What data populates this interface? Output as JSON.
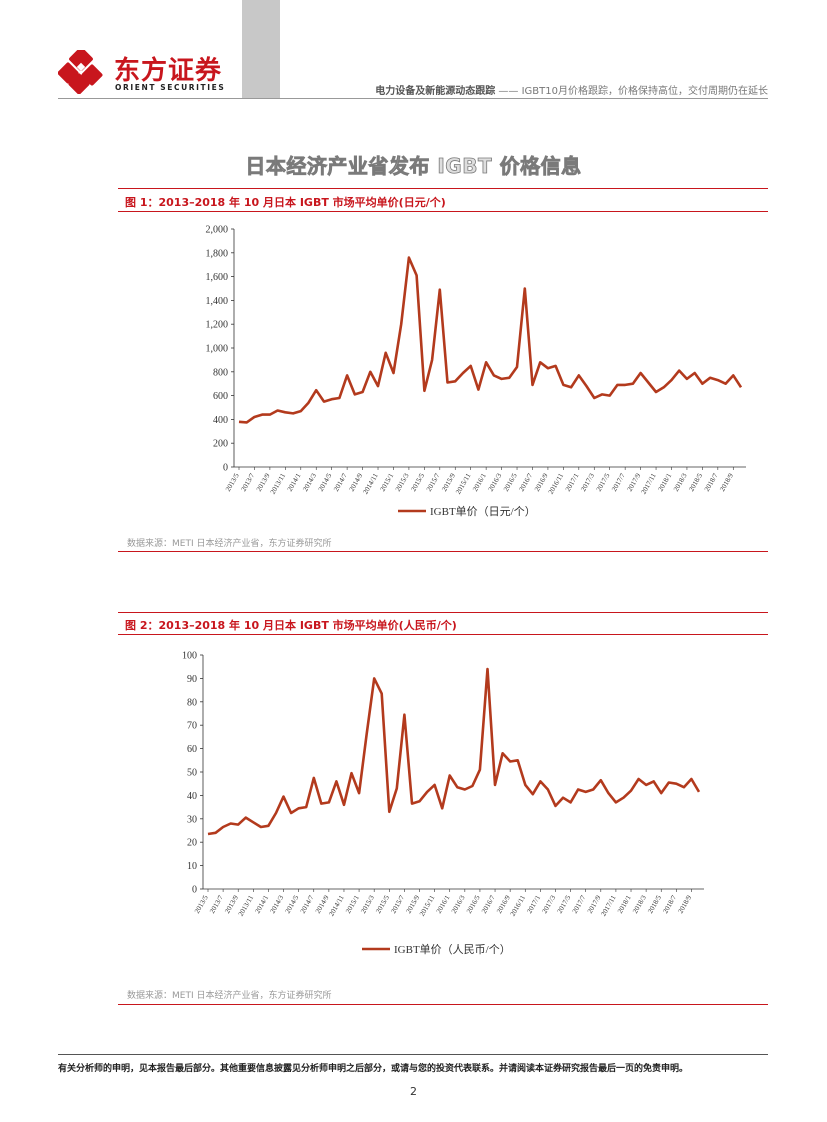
{
  "header": {
    "logo_cn": "东方证券",
    "logo_en": "ORIENT SECURITIES",
    "report_series": "电力设备及新能源动态跟踪",
    "separator": "——",
    "report_title": "IGBT10月价格跟踪，价格保持高位，交付周期仍在延长"
  },
  "section_title": "日本经济产业省发布 IGBT 价格信息",
  "figures": [
    {
      "title": "图 1：2013–2018 年 10 月日本 IGBT 市场平均单价(日元/个)",
      "source": "数据来源：METI 日本经济产业省，东方证券研究所"
    },
    {
      "title": "图 2：2013–2018 年 10 月日本 IGBT 市场平均单价(人民币/个)",
      "source": "数据来源：METI 日本经济产业省，东方证券研究所"
    }
  ],
  "chart_data": [
    {
      "type": "line",
      "title": "2013–2018 年 10 月日本 IGBT 市场平均单价(日元/个)",
      "legend": "IGBT单价（日元/个）",
      "line_color": "#b33a1d",
      "ylim": [
        0,
        2000
      ],
      "yticks": [
        0,
        200,
        400,
        600,
        800,
        "1,000",
        "1,200",
        "1,400",
        "1,600",
        "1,800",
        "2,000"
      ],
      "ytick_values": [
        0,
        200,
        400,
        600,
        800,
        1000,
        1200,
        1400,
        1600,
        1800,
        2000
      ],
      "x_tick_labels": [
        "2013/5",
        "2013/7",
        "2013/9",
        "2013/11",
        "2014/1",
        "2014/3",
        "2014/5",
        "2014/7",
        "2014/9",
        "2014/11",
        "2015/1",
        "2015/3",
        "2015/5",
        "2015/7",
        "2015/9",
        "2015/11",
        "2016/1",
        "2016/3",
        "2016/5",
        "2016/7",
        "2016/9",
        "2016/11",
        "2017/1",
        "2017/3",
        "2017/5",
        "2017/7",
        "2017/9",
        "2017/11",
        "2018/1",
        "2018/3",
        "2018/5",
        "2018/7",
        "2018/9"
      ],
      "series": [
        {
          "name": "IGBT单价（日元/个）",
          "values": [
            380,
            375,
            420,
            440,
            440,
            475,
            460,
            450,
            470,
            540,
            645,
            550,
            570,
            580,
            770,
            610,
            630,
            800,
            680,
            960,
            790,
            1200,
            1760,
            1610,
            640,
            900,
            1490,
            710,
            720,
            790,
            850,
            650,
            880,
            770,
            740,
            750,
            840,
            1500,
            690,
            880,
            830,
            850,
            690,
            670,
            770,
            680,
            580,
            610,
            600,
            690,
            690,
            700,
            790,
            710,
            630,
            670,
            730,
            810,
            740,
            790,
            700,
            750,
            730,
            700,
            770,
            670
          ]
        }
      ]
    },
    {
      "type": "line",
      "title": "2013–2018 年 10 月日本 IGBT 市场平均单价(人民币/个)",
      "legend": "IGBT单价（人民币/个）",
      "line_color": "#b33a1d",
      "ylim": [
        0,
        100
      ],
      "yticks": [
        0,
        10,
        20,
        30,
        40,
        50,
        60,
        70,
        80,
        90,
        100
      ],
      "ytick_values": [
        0,
        10,
        20,
        30,
        40,
        50,
        60,
        70,
        80,
        90,
        100
      ],
      "x_tick_labels": [
        "2013/5",
        "2013/7",
        "2013/9",
        "2013/11",
        "2014/1",
        "2014/3",
        "2014/5",
        "2014/7",
        "2014/9",
        "2014/11",
        "2015/1",
        "2015/3",
        "2015/5",
        "2015/7",
        "2015/9",
        "2015/11",
        "2016/1",
        "2016/3",
        "2016/5",
        "2016/7",
        "2016/9",
        "2016/11",
        "2017/1",
        "2017/3",
        "2017/5",
        "2017/7",
        "2017/9",
        "2017/11",
        "2018/1",
        "2018/3",
        "2018/5",
        "2018/7",
        "2018/9"
      ],
      "series": [
        {
          "name": "IGBT单价（人民币/个）",
          "values": [
            23.5,
            24,
            26.5,
            28,
            27.5,
            30.5,
            28.5,
            26.5,
            27,
            32.5,
            39.5,
            32.5,
            34.5,
            35,
            47.5,
            36.5,
            37,
            46,
            36,
            49.5,
            41,
            66,
            90,
            83.5,
            33,
            43,
            74.5,
            36.5,
            37.5,
            41.5,
            44.5,
            34.5,
            48.5,
            43.5,
            42.5,
            44,
            51,
            94,
            44.5,
            58,
            54.5,
            55,
            44.5,
            40.5,
            46,
            42.5,
            35.5,
            39,
            37,
            42.5,
            41.5,
            42.5,
            46.5,
            41,
            37,
            39,
            42,
            47,
            44.5,
            46,
            41,
            45.5,
            45,
            43.5,
            47,
            41.5
          ]
        }
      ]
    }
  ],
  "footer": {
    "disclaimer": "有关分析师的申明，见本报告最后部分。其他重要信息披露见分析师申明之后部分，或请与您的投资代表联系。并请阅读本证券研究报告最后一页的免责申明。",
    "page_number": "2"
  }
}
